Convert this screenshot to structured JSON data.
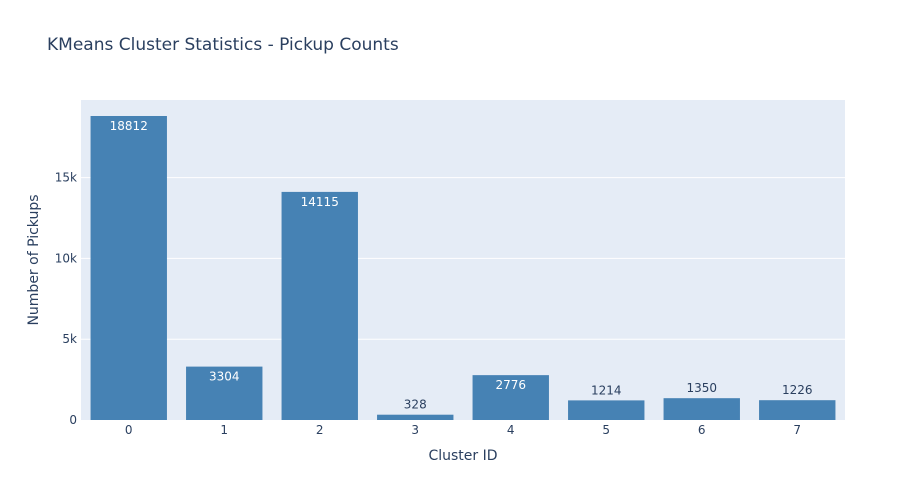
{
  "chart_data": {
    "type": "bar",
    "title": "KMeans Cluster Statistics - Pickup Counts",
    "xlabel": "Cluster ID",
    "ylabel": "Number of Pickups",
    "categories": [
      "0",
      "1",
      "2",
      "3",
      "4",
      "5",
      "6",
      "7"
    ],
    "values": [
      18812,
      3304,
      14115,
      328,
      2776,
      1214,
      1350,
      1226
    ],
    "data_labels": [
      "18812",
      "3304",
      "14115",
      "328",
      "2776",
      "1214",
      "1350",
      "1226"
    ],
    "ylim": [
      0,
      19802
    ],
    "yticks": [
      0,
      5000,
      10000,
      15000
    ],
    "ytick_labels": [
      "0",
      "5k",
      "10k",
      "15k"
    ],
    "grid": true,
    "legend": false,
    "colors": {
      "bar": "#4682b4",
      "plot_background": "#e5ecf6",
      "grid": "#ffffff",
      "text": "#2a3f5f"
    }
  }
}
